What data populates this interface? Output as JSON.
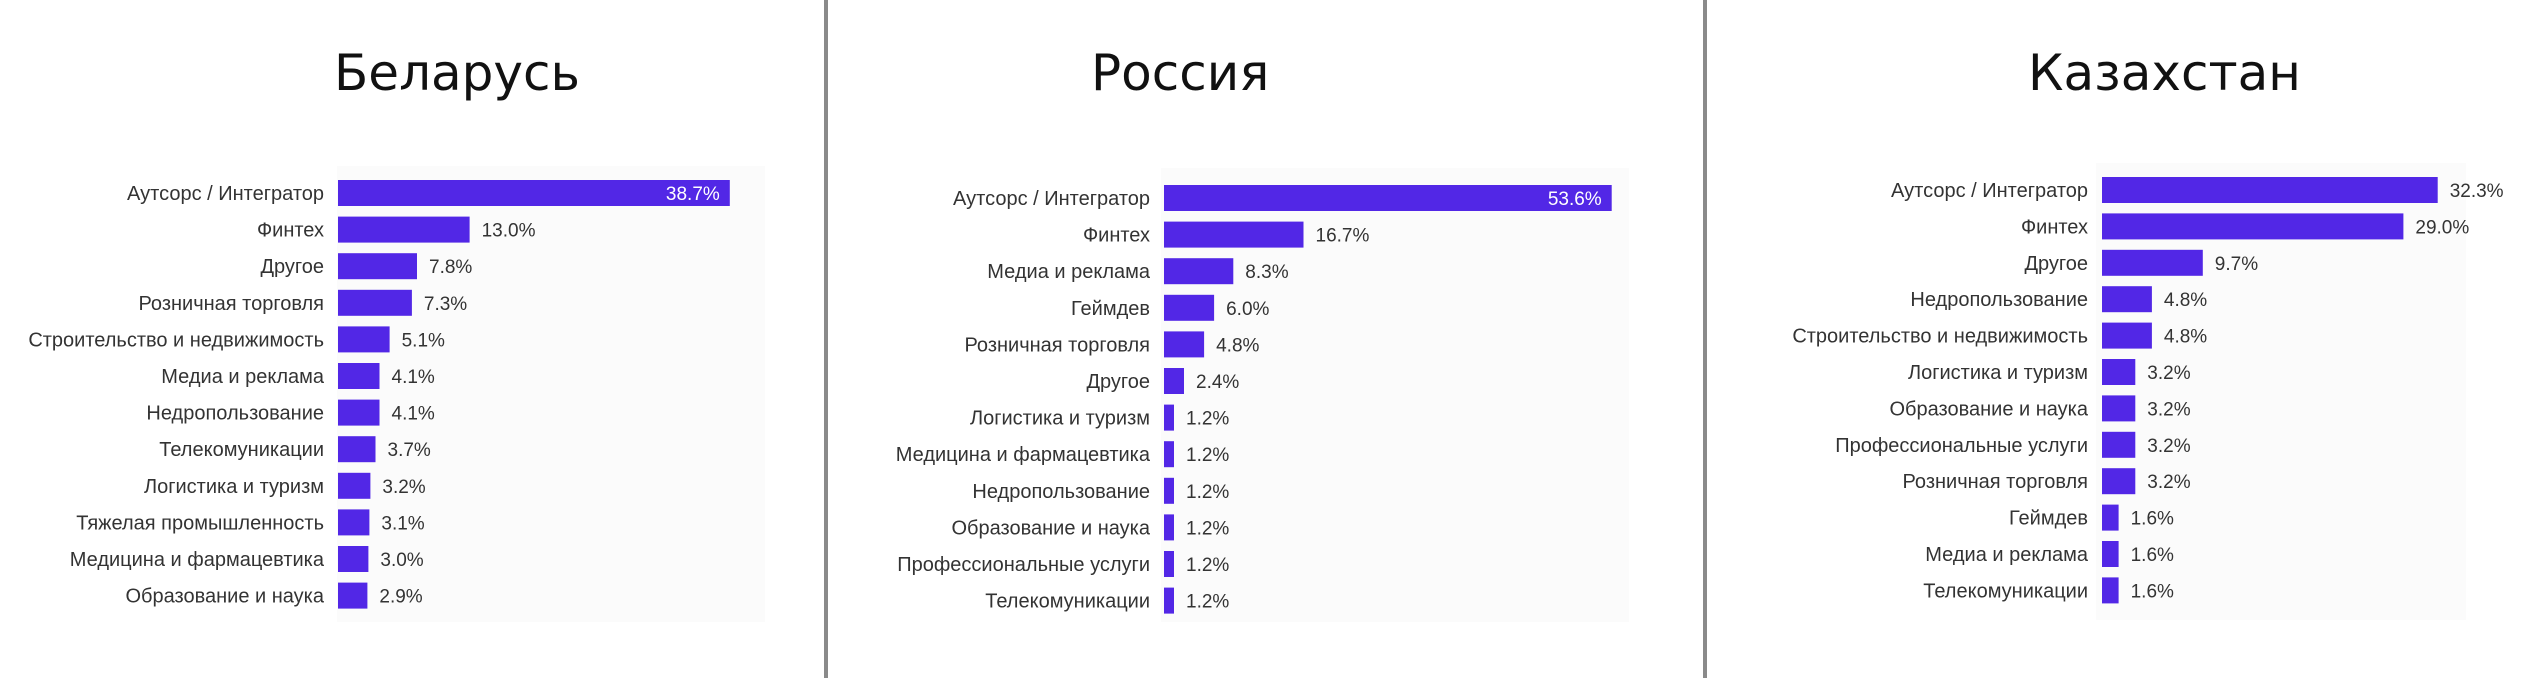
{
  "colors": {
    "bar": "#5227e6",
    "divider": "#8a8a8a",
    "text": "#333333"
  },
  "chart_data": [
    {
      "type": "bar",
      "orientation": "horizontal",
      "title": "Беларусь",
      "xlim": [
        0,
        40
      ],
      "grid": false,
      "categories": [
        "Аутсорс / Интегратор",
        "Финтех",
        "Другое",
        "Розничная торговля",
        "Строительство и недвижимость",
        "Медиа и реклама",
        "Недропользование",
        "Телекомуникации",
        "Логистика и туризм",
        "Тяжелая промышленность",
        "Медицина и фармацевтика",
        "Образование и наука"
      ],
      "values": [
        38.7,
        13.0,
        7.8,
        7.3,
        5.1,
        4.1,
        4.1,
        3.7,
        3.2,
        3.1,
        3.0,
        2.9
      ],
      "labels": [
        "38.7%",
        "13.0%",
        "7.8%",
        "7.3%",
        "5.1%",
        "4.1%",
        "4.1%",
        "3.7%",
        "3.2%",
        "3.1%",
        "3.0%",
        "2.9%"
      ]
    },
    {
      "type": "bar",
      "orientation": "horizontal",
      "title": "Россия",
      "xlim": [
        0,
        54
      ],
      "grid": false,
      "categories": [
        "Аутсорс / Интегратор",
        "Финтех",
        "Медиа и реклама",
        "Геймдев",
        "Розничная торговля",
        "Другое",
        "Логистика и туризм",
        "Медицина и фармацевтика",
        "Недропользование",
        "Образование и наука",
        "Профессиональные услуги",
        "Телекомуникации"
      ],
      "values": [
        53.6,
        16.7,
        8.3,
        6.0,
        4.8,
        2.4,
        1.2,
        1.2,
        1.2,
        1.2,
        1.2,
        1.2
      ],
      "labels": [
        "53.6%",
        "16.7%",
        "8.3%",
        "6.0%",
        "4.8%",
        "2.4%",
        "1.2%",
        "1.2%",
        "1.2%",
        "1.2%",
        "1.2%",
        "1.2%"
      ]
    },
    {
      "type": "bar",
      "orientation": "horizontal",
      "title": "Казахстан",
      "xlim": [
        0,
        33
      ],
      "grid": false,
      "categories": [
        "Аутсорс / Интегратор",
        "Финтех",
        "Другое",
        "Недропользование",
        "Строительство и недвижимость",
        "Логистика и туризм",
        "Образование и наука",
        "Профессиональные услуги",
        "Розничная торговля",
        "Геймдев",
        "Медиа и реклама",
        "Телекомуникации"
      ],
      "values": [
        32.3,
        29.0,
        9.7,
        4.8,
        4.8,
        3.2,
        3.2,
        3.2,
        3.2,
        1.6,
        1.6,
        1.6
      ],
      "labels": [
        "32.3%",
        "29.0%",
        "9.7%",
        "4.8%",
        "4.8%",
        "3.2%",
        "3.2%",
        "3.2%",
        "3.2%",
        "1.6%",
        "1.6%",
        "1.6%"
      ]
    }
  ]
}
